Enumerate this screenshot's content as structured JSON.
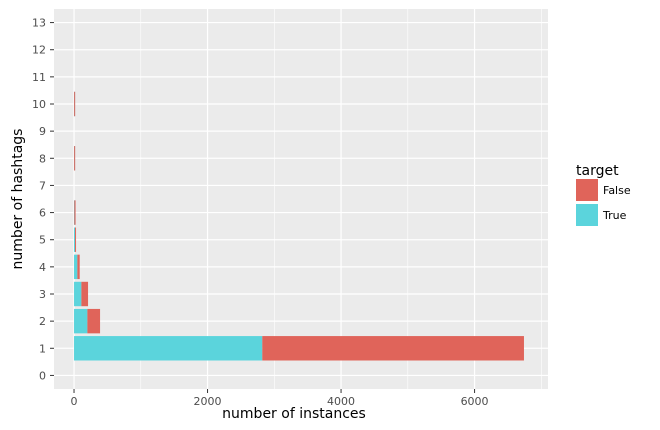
{
  "chart_data": {
    "type": "bar",
    "orientation": "horizontal",
    "stacked": true,
    "xlabel": "number of instances",
    "ylabel": "number of hashtags",
    "xlim": [
      -300,
      7100
    ],
    "ylim": [
      -0.5,
      13.5
    ],
    "xticks": [
      0,
      2000,
      4000,
      6000
    ],
    "yticks": [
      0,
      1,
      2,
      3,
      4,
      5,
      6,
      7,
      8,
      9,
      10,
      11,
      12,
      13
    ],
    "grid": true,
    "legend": {
      "title": "target",
      "position": "right"
    },
    "categories": [
      0,
      1,
      2,
      3,
      4,
      5,
      6,
      7,
      8,
      9,
      10,
      11,
      12,
      13
    ],
    "series": [
      {
        "name": "True",
        "color": "#5bd4dc",
        "values": [
          0,
          2820,
          200,
          110,
          50,
          15,
          5,
          0,
          2,
          0,
          2,
          0,
          0,
          0
        ]
      },
      {
        "name": "False",
        "color": "#e0645a",
        "values": [
          0,
          3920,
          190,
          100,
          35,
          13,
          18,
          0,
          8,
          0,
          10,
          0,
          0,
          0
        ]
      }
    ]
  }
}
